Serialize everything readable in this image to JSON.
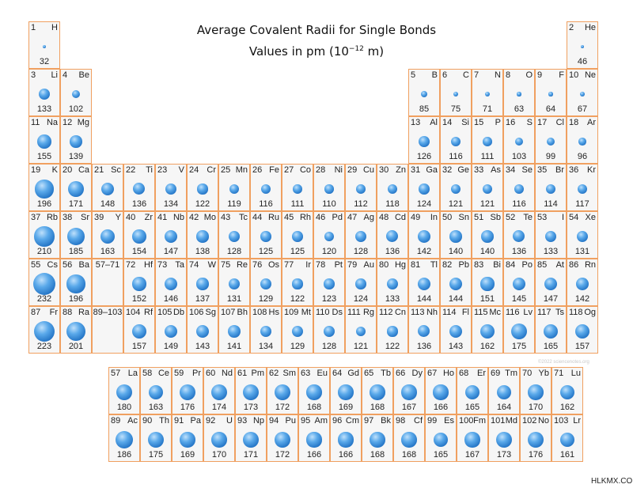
{
  "title": "Average Covalent Radii for Single Bonds",
  "subtitle_prefix": "Values in pm (10",
  "subtitle_exp": "−12",
  "subtitle_suffix": " m)",
  "copyright": "©2022 sciencenotes.org",
  "watermark": "HLKMX.COM",
  "colors": {
    "border": "#f0a060",
    "cell_bg": "#f6f6f6",
    "ball": "#2f82d6"
  },
  "elements": [
    {
      "n": "1",
      "s": "H",
      "v": "32"
    },
    {
      "n": "2",
      "s": "He",
      "v": "46"
    },
    {
      "n": "3",
      "s": "Li",
      "v": "133"
    },
    {
      "n": "4",
      "s": "Be",
      "v": "102"
    },
    {
      "n": "5",
      "s": "B",
      "v": "85"
    },
    {
      "n": "6",
      "s": "C",
      "v": "75"
    },
    {
      "n": "7",
      "s": "N",
      "v": "71"
    },
    {
      "n": "8",
      "s": "O",
      "v": "63"
    },
    {
      "n": "9",
      "s": "F",
      "v": "64"
    },
    {
      "n": "10",
      "s": "Ne",
      "v": "67"
    },
    {
      "n": "11",
      "s": "Na",
      "v": "155"
    },
    {
      "n": "12",
      "s": "Mg",
      "v": "139"
    },
    {
      "n": "13",
      "s": "Al",
      "v": "126"
    },
    {
      "n": "14",
      "s": "Si",
      "v": "116"
    },
    {
      "n": "15",
      "s": "P",
      "v": "111"
    },
    {
      "n": "16",
      "s": "S",
      "v": "103"
    },
    {
      "n": "17",
      "s": "Cl",
      "v": "99"
    },
    {
      "n": "18",
      "s": "Ar",
      "v": "96"
    },
    {
      "n": "19",
      "s": "K",
      "v": "196"
    },
    {
      "n": "20",
      "s": "Ca",
      "v": "171"
    },
    {
      "n": "21",
      "s": "Sc",
      "v": "148"
    },
    {
      "n": "22",
      "s": "Ti",
      "v": "136"
    },
    {
      "n": "23",
      "s": "V",
      "v": "134"
    },
    {
      "n": "24",
      "s": "Cr",
      "v": "122"
    },
    {
      "n": "25",
      "s": "Mn",
      "v": "119"
    },
    {
      "n": "26",
      "s": "Fe",
      "v": "116"
    },
    {
      "n": "27",
      "s": "Co",
      "v": "111"
    },
    {
      "n": "28",
      "s": "Ni",
      "v": "110"
    },
    {
      "n": "29",
      "s": "Cu",
      "v": "112"
    },
    {
      "n": "30",
      "s": "Zn",
      "v": "118"
    },
    {
      "n": "31",
      "s": "Ga",
      "v": "124"
    },
    {
      "n": "32",
      "s": "Ge",
      "v": "121"
    },
    {
      "n": "33",
      "s": "As",
      "v": "121"
    },
    {
      "n": "34",
      "s": "Se",
      "v": "116"
    },
    {
      "n": "35",
      "s": "Br",
      "v": "114"
    },
    {
      "n": "36",
      "s": "Kr",
      "v": "117"
    },
    {
      "n": "37",
      "s": "Rb",
      "v": "210"
    },
    {
      "n": "38",
      "s": "Sr",
      "v": "185"
    },
    {
      "n": "39",
      "s": "Y",
      "v": "163"
    },
    {
      "n": "40",
      "s": "Zr",
      "v": "154"
    },
    {
      "n": "41",
      "s": "Nb",
      "v": "147"
    },
    {
      "n": "42",
      "s": "Mo",
      "v": "138"
    },
    {
      "n": "43",
      "s": "Tc",
      "v": "128"
    },
    {
      "n": "44",
      "s": "Ru",
      "v": "125"
    },
    {
      "n": "45",
      "s": "Rh",
      "v": "125"
    },
    {
      "n": "46",
      "s": "Pd",
      "v": "120"
    },
    {
      "n": "47",
      "s": "Ag",
      "v": "128"
    },
    {
      "n": "48",
      "s": "Cd",
      "v": "136"
    },
    {
      "n": "49",
      "s": "In",
      "v": "142"
    },
    {
      "n": "50",
      "s": "Sn",
      "v": "140"
    },
    {
      "n": "51",
      "s": "Sb",
      "v": "140"
    },
    {
      "n": "52",
      "s": "Te",
      "v": "136"
    },
    {
      "n": "53",
      "s": "I",
      "v": "133"
    },
    {
      "n": "54",
      "s": "Xe",
      "v": "131"
    },
    {
      "n": "55",
      "s": "Cs",
      "v": "232"
    },
    {
      "n": "56",
      "s": "Ba",
      "v": "196"
    },
    {
      "n": "72",
      "s": "Hf",
      "v": "152"
    },
    {
      "n": "73",
      "s": "Ta",
      "v": "146"
    },
    {
      "n": "74",
      "s": "W",
      "v": "137"
    },
    {
      "n": "75",
      "s": "Re",
      "v": "131"
    },
    {
      "n": "76",
      "s": "Os",
      "v": "129"
    },
    {
      "n": "77",
      "s": "Ir",
      "v": "122"
    },
    {
      "n": "78",
      "s": "Pt",
      "v": "123"
    },
    {
      "n": "79",
      "s": "Au",
      "v": "124"
    },
    {
      "n": "80",
      "s": "Hg",
      "v": "133"
    },
    {
      "n": "81",
      "s": "Tl",
      "v": "144"
    },
    {
      "n": "82",
      "s": "Pb",
      "v": "144"
    },
    {
      "n": "83",
      "s": "Bi",
      "v": "151"
    },
    {
      "n": "84",
      "s": "Po",
      "v": "145"
    },
    {
      "n": "85",
      "s": "At",
      "v": "147"
    },
    {
      "n": "86",
      "s": "Rn",
      "v": "142"
    },
    {
      "n": "87",
      "s": "Fr",
      "v": "223"
    },
    {
      "n": "88",
      "s": "Ra",
      "v": "201"
    },
    {
      "n": "104",
      "s": "Rf",
      "v": "157"
    },
    {
      "n": "105",
      "s": "Db",
      "v": "149"
    },
    {
      "n": "106",
      "s": "Sg",
      "v": "143"
    },
    {
      "n": "107",
      "s": "Bh",
      "v": "141"
    },
    {
      "n": "108",
      "s": "Hs",
      "v": "134"
    },
    {
      "n": "109",
      "s": "Mt",
      "v": "129"
    },
    {
      "n": "110",
      "s": "Ds",
      "v": "128"
    },
    {
      "n": "111",
      "s": "Rg",
      "v": "121"
    },
    {
      "n": "112",
      "s": "Cn",
      "v": "122"
    },
    {
      "n": "113",
      "s": "Nh",
      "v": "136"
    },
    {
      "n": "114",
      "s": "Fl",
      "v": "143"
    },
    {
      "n": "115",
      "s": "Mc",
      "v": "162"
    },
    {
      "n": "116",
      "s": "Lv",
      "v": "175"
    },
    {
      "n": "117",
      "s": "Ts",
      "v": "165"
    },
    {
      "n": "118",
      "s": "Og",
      "v": "157"
    },
    {
      "n": "57",
      "s": "La",
      "v": "180"
    },
    {
      "n": "58",
      "s": "Ce",
      "v": "163"
    },
    {
      "n": "59",
      "s": "Pr",
      "v": "176"
    },
    {
      "n": "60",
      "s": "Nd",
      "v": "174"
    },
    {
      "n": "61",
      "s": "Pm",
      "v": "173"
    },
    {
      "n": "62",
      "s": "Sm",
      "v": "172"
    },
    {
      "n": "63",
      "s": "Eu",
      "v": "168"
    },
    {
      "n": "64",
      "s": "Gd",
      "v": "169"
    },
    {
      "n": "65",
      "s": "Tb",
      "v": "168"
    },
    {
      "n": "66",
      "s": "Dy",
      "v": "167"
    },
    {
      "n": "67",
      "s": "Ho",
      "v": "166"
    },
    {
      "n": "68",
      "s": "Er",
      "v": "165"
    },
    {
      "n": "69",
      "s": "Tm",
      "v": "164"
    },
    {
      "n": "70",
      "s": "Yb",
      "v": "170"
    },
    {
      "n": "71",
      "s": "Lu",
      "v": "162"
    },
    {
      "n": "89",
      "s": "Ac",
      "v": "186"
    },
    {
      "n": "90",
      "s": "Th",
      "v": "175"
    },
    {
      "n": "91",
      "s": "Pa",
      "v": "169"
    },
    {
      "n": "92",
      "s": "U",
      "v": "170"
    },
    {
      "n": "93",
      "s": "Np",
      "v": "171"
    },
    {
      "n": "94",
      "s": "Pu",
      "v": "172"
    },
    {
      "n": "95",
      "s": "Am",
      "v": "166"
    },
    {
      "n": "96",
      "s": "Cm",
      "v": "166"
    },
    {
      "n": "97",
      "s": "Bk",
      "v": "168"
    },
    {
      "n": "98",
      "s": "Cf",
      "v": "168"
    },
    {
      "n": "99",
      "s": "Es",
      "v": "165"
    },
    {
      "n": "100",
      "s": "Fm",
      "v": "167"
    },
    {
      "n": "101",
      "s": "Md",
      "v": "173"
    },
    {
      "n": "102",
      "s": "No",
      "v": "176"
    },
    {
      "n": "103",
      "s": "Lr",
      "v": "161"
    }
  ],
  "placeholders": [
    {
      "label": "57–71"
    },
    {
      "label": "89–103"
    }
  ]
}
